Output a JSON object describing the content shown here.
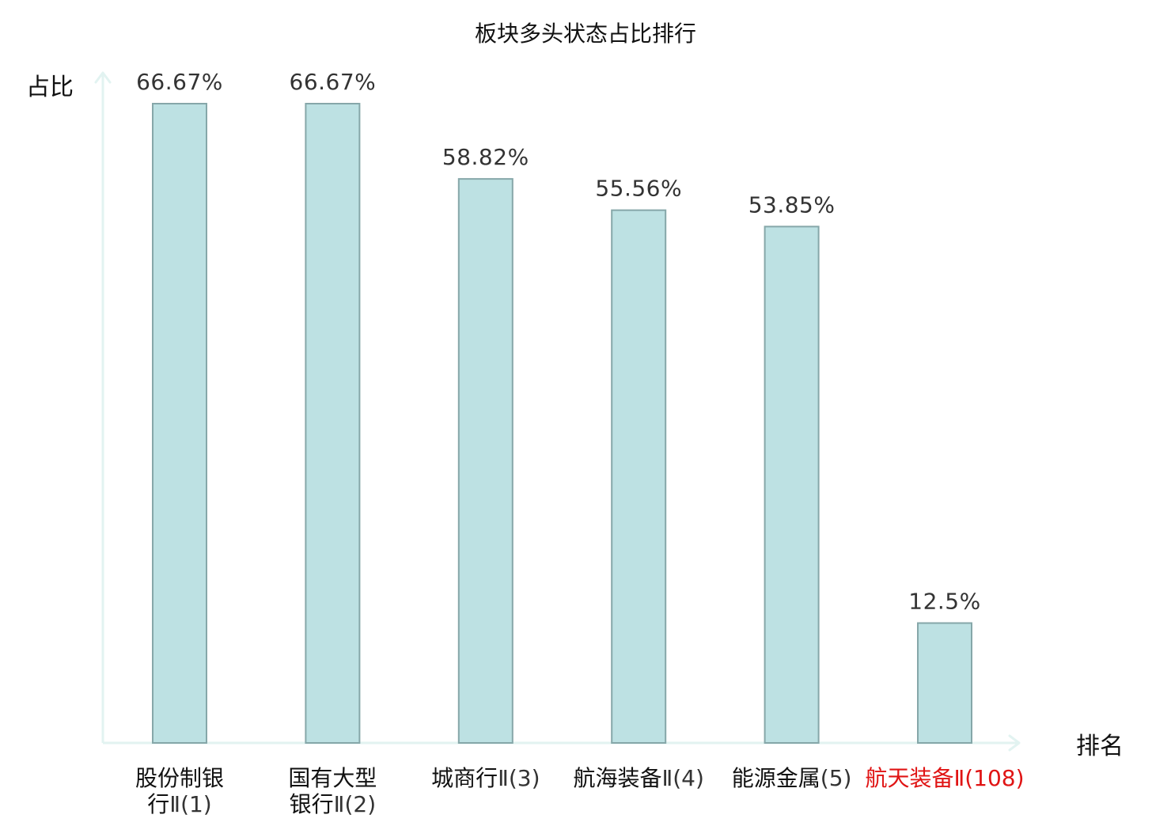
{
  "chart_data": {
    "type": "bar",
    "title": "板块多头状态占比排行",
    "ylabel": "占比",
    "xlabel": "排名",
    "ylim": [
      0,
      70
    ],
    "grid": false,
    "categories": [
      {
        "name_lines": [
          "股份制银",
          "行"
        ],
        "rank": "Ⅱ(1)",
        "highlight": false
      },
      {
        "name_lines": [
          "国有大型",
          "银行"
        ],
        "rank": "Ⅱ(2)",
        "highlight": false
      },
      {
        "name_lines": [
          "城商行"
        ],
        "rank": "Ⅱ(3)",
        "highlight": false
      },
      {
        "name_lines": [
          "航海装备",
          ""
        ],
        "rank": "Ⅱ(4)",
        "highlight": false
      },
      {
        "name_lines": [
          "能源金属"
        ],
        "rank": "(5)",
        "highlight": false
      },
      {
        "name_lines": [
          "航天装备",
          ""
        ],
        "rank": "Ⅱ(108)",
        "highlight": true
      }
    ],
    "values": [
      66.67,
      66.67,
      58.82,
      55.56,
      53.85,
      12.5
    ],
    "value_labels": [
      "66.67%",
      "66.67%",
      "58.82%",
      "55.56%",
      "53.85%",
      "12.5%"
    ]
  },
  "colors": {
    "bar_fill": "#bde1e3",
    "bar_stroke": "#86a7a9",
    "axis": "#e2f3f1",
    "text": "#111111",
    "value_label": "#333333",
    "rank_text": "#333333",
    "highlight": "#e01414"
  }
}
